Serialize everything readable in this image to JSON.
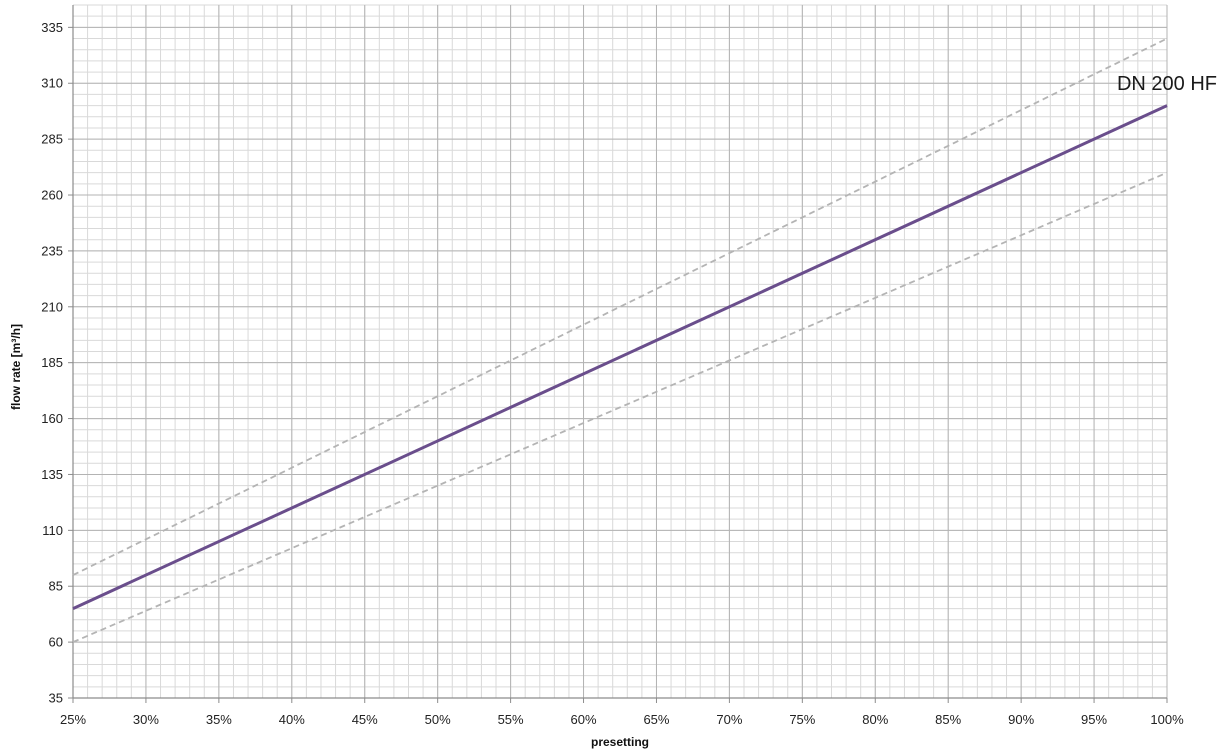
{
  "chart_data": {
    "type": "line",
    "title": "",
    "xlabel": "presetting",
    "ylabel": "flow rate [m³/h]",
    "xlim": [
      25,
      100
    ],
    "ylim": [
      35,
      345
    ],
    "x_ticks": [
      25,
      30,
      35,
      40,
      45,
      50,
      55,
      60,
      65,
      70,
      75,
      80,
      85,
      90,
      95,
      100
    ],
    "x_tick_labels": [
      "25%",
      "30%",
      "35%",
      "40%",
      "45%",
      "50%",
      "55%",
      "60%",
      "65%",
      "70%",
      "75%",
      "80%",
      "85%",
      "90%",
      "95%",
      "100%"
    ],
    "y_ticks": [
      35,
      60,
      85,
      110,
      135,
      160,
      185,
      210,
      235,
      260,
      285,
      310,
      335
    ],
    "y_tick_labels": [
      "35",
      "60",
      "85",
      "110",
      "135",
      "160",
      "185",
      "210",
      "235",
      "260",
      "285",
      "310",
      "335"
    ],
    "grid": true,
    "minor_grid": {
      "x_step": 1,
      "y_step": 5
    },
    "legend": "none",
    "series": [
      {
        "name": "DN 200 HF",
        "style": "solid",
        "color": "#6a4e8c",
        "x": [
          25,
          100
        ],
        "y": [
          75,
          300
        ]
      },
      {
        "name": "",
        "style": "dashed",
        "color": "#b4b4b4",
        "x": [
          25,
          100
        ],
        "y": [
          90,
          330
        ]
      },
      {
        "name": "",
        "style": "dashed",
        "color": "#b4b4b4",
        "x": [
          25,
          100
        ],
        "y": [
          60,
          270
        ]
      }
    ],
    "annotations": [
      {
        "text": "DN 200 HF",
        "x": 100,
        "y": 310
      }
    ],
    "colors": {
      "major_grid": "#b3b3b3",
      "minor_grid": "#d9d9d9",
      "axis": "#8c8c8c"
    }
  }
}
